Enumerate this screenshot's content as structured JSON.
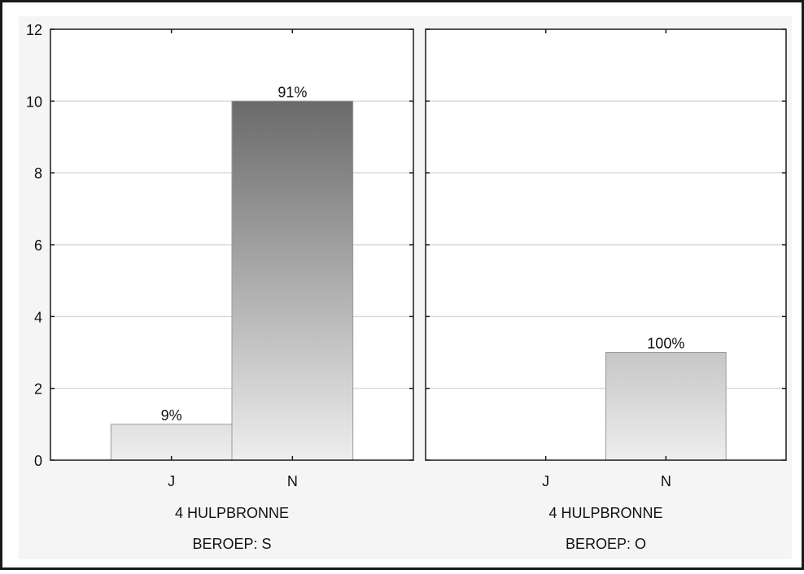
{
  "colors": {
    "frame": "#1a1a1a",
    "panel_background": "#f5f5f5",
    "plot_background": "#ffffff",
    "gridline": "#d9d9d9",
    "bar_dark": "#6a6a6a",
    "bar_light": "#eeeeee",
    "bar_outline": "#9a9a9a"
  },
  "chart_data": [
    {
      "type": "bar",
      "categories": [
        "J",
        "N"
      ],
      "values": [
        1,
        10
      ],
      "data_labels": [
        "9%",
        "91%"
      ],
      "ylim": [
        0,
        12
      ],
      "yticks": [
        "0",
        "2",
        "4",
        "6",
        "8",
        "10",
        "12"
      ],
      "xlabel": "4 HULPBRONNE",
      "group_label": "BEROEP: S",
      "grid": true
    },
    {
      "type": "bar",
      "categories": [
        "J",
        "N"
      ],
      "values": [
        0,
        3
      ],
      "data_labels": [
        "",
        "100%"
      ],
      "ylim": [
        0,
        12
      ],
      "xlabel": "4 HULPBRONNE",
      "group_label": "BEROEP: O",
      "grid": true
    }
  ]
}
